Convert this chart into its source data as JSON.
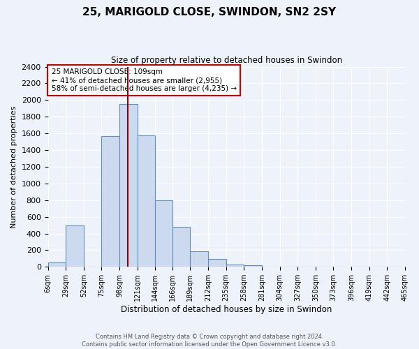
{
  "title": "25, MARIGOLD CLOSE, SWINDON, SN2 2SY",
  "subtitle": "Size of property relative to detached houses in Swindon",
  "xlabel": "Distribution of detached houses by size in Swindon",
  "ylabel": "Number of detached properties",
  "bin_labels": [
    "6sqm",
    "29sqm",
    "52sqm",
    "75sqm",
    "98sqm",
    "121sqm",
    "144sqm",
    "166sqm",
    "189sqm",
    "212sqm",
    "235sqm",
    "258sqm",
    "281sqm",
    "304sqm",
    "327sqm",
    "350sqm",
    "373sqm",
    "396sqm",
    "419sqm",
    "442sqm",
    "465sqm"
  ],
  "bar_heights": [
    50,
    500,
    0,
    1570,
    1950,
    1580,
    800,
    480,
    190,
    95,
    30,
    20,
    0,
    0,
    0,
    0,
    0,
    0,
    0,
    0
  ],
  "bar_color": "#ccdaf0",
  "bar_edge_color": "#6090c0",
  "vline_x": 109,
  "vline_color": "#8b0000",
  "annotation_title": "25 MARIGOLD CLOSE: 109sqm",
  "annotation_line1": "← 41% of detached houses are smaller (2,955)",
  "annotation_line2": "58% of semi-detached houses are larger (4,235) →",
  "annotation_box_color": "#ffffff",
  "annotation_box_edge": "#cc0000",
  "ylim": [
    0,
    2400
  ],
  "yticks": [
    0,
    200,
    400,
    600,
    800,
    1000,
    1200,
    1400,
    1600,
    1800,
    2000,
    2200,
    2400
  ],
  "bin_edges": [
    6,
    29,
    52,
    75,
    98,
    121,
    144,
    166,
    189,
    212,
    235,
    258,
    281,
    304,
    327,
    350,
    373,
    396,
    419,
    442,
    465
  ],
  "footer_line1": "Contains HM Land Registry data © Crown copyright and database right 2024.",
  "footer_line2": "Contains public sector information licensed under the Open Government Licence v3.0.",
  "bg_color": "#eef2fa"
}
